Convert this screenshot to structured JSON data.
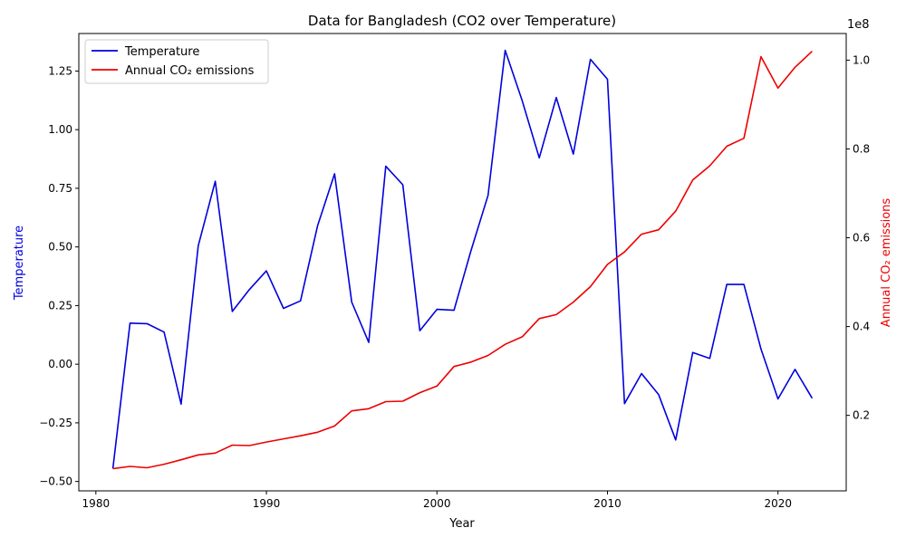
{
  "chart_data": {
    "type": "line",
    "title": "Data for Bangladesh (CO2 over Temperature)",
    "xlabel": "Year",
    "ylabel_left": "Temperature",
    "ylabel_right": "Annual CO₂ emissions",
    "right_axis_multiplier": "1e8",
    "xlim": [
      1979,
      2024
    ],
    "ylim_left": [
      -0.54,
      1.41
    ],
    "ylim_right": [
      0.03,
      1.06
    ],
    "x_ticks": [
      1980,
      1990,
      2000,
      2010,
      2020
    ],
    "left_ticks": [
      -0.5,
      -0.25,
      0.0,
      0.25,
      0.5,
      0.75,
      1.0,
      1.25
    ],
    "left_tick_labels": [
      "−0.50",
      "−0.25",
      "0.00",
      "0.25",
      "0.50",
      "0.75",
      "1.00",
      "1.25"
    ],
    "right_ticks": [
      0.2,
      0.4,
      0.6,
      0.8,
      1.0
    ],
    "right_tick_labels": [
      "0.2",
      "0.4",
      "0.6",
      "0.8",
      "1.0"
    ],
    "legend_position": "top-left",
    "x": [
      1981,
      1982,
      1983,
      1984,
      1985,
      1986,
      1987,
      1988,
      1989,
      1990,
      1991,
      1992,
      1993,
      1994,
      1995,
      1996,
      1997,
      1998,
      1999,
      2000,
      2001,
      2002,
      2003,
      2004,
      2005,
      2006,
      2007,
      2008,
      2009,
      2010,
      2011,
      2012,
      2013,
      2014,
      2015,
      2016,
      2017,
      2018,
      2019,
      2020,
      2021,
      2022
    ],
    "series": [
      {
        "name": "Temperature",
        "axis": "left",
        "color": "#0000dd",
        "values": [
          -0.445,
          0.175,
          0.173,
          0.137,
          -0.17,
          0.505,
          0.78,
          0.225,
          0.318,
          0.398,
          0.238,
          0.27,
          0.59,
          0.812,
          0.265,
          0.093,
          0.844,
          0.765,
          0.143,
          0.234,
          0.23,
          0.485,
          0.72,
          1.338,
          1.123,
          0.88,
          1.137,
          0.896,
          1.3,
          1.215,
          -0.168,
          -0.04,
          -0.13,
          -0.323,
          0.05,
          0.025,
          0.34,
          0.34,
          0.065,
          -0.148,
          -0.022,
          -0.145
        ]
      },
      {
        "name": "Annual CO₂ emissions",
        "axis": "right",
        "color": "#ee0000",
        "values": [
          0.08,
          0.085,
          0.082,
          0.09,
          0.1,
          0.111,
          0.115,
          0.133,
          0.132,
          0.14,
          0.147,
          0.154,
          0.162,
          0.176,
          0.21,
          0.215,
          0.231,
          0.232,
          0.251,
          0.266,
          0.31,
          0.32,
          0.335,
          0.36,
          0.377,
          0.418,
          0.427,
          0.455,
          0.49,
          0.54,
          0.568,
          0.608,
          0.618,
          0.66,
          0.73,
          0.762,
          0.806,
          0.824,
          1.008,
          0.937,
          0.984,
          1.02
        ]
      }
    ]
  }
}
